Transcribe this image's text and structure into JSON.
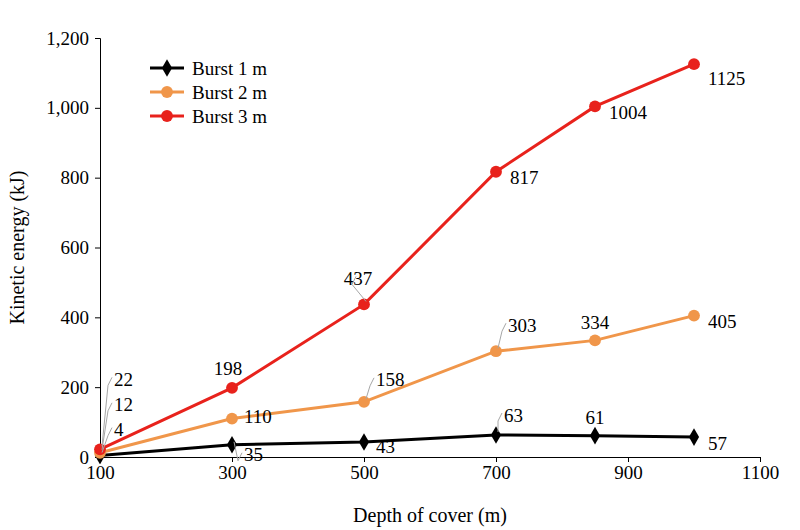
{
  "chart_data": {
    "type": "line",
    "x_label": "Depth of cover (m)",
    "y_label": "Kinetic energy (kJ)",
    "x": [
      100,
      300,
      500,
      700,
      850,
      1000
    ],
    "series": [
      {
        "name": "Burst 1 m",
        "color": "#000000",
        "marker": "diamond",
        "values": [
          4,
          35,
          43,
          63,
          61,
          57
        ]
      },
      {
        "name": "Burst 2 m",
        "color": "#f0964a",
        "marker": "circle",
        "values": [
          12,
          110,
          158,
          303,
          334,
          405
        ]
      },
      {
        "name": "Burst 3 m",
        "color": "#e8221c",
        "marker": "circle",
        "values": [
          22,
          198,
          437,
          817,
          1004,
          1125
        ]
      }
    ],
    "xlim": [
      100,
      1100
    ],
    "xticks": [
      100,
      300,
      500,
      700,
      900,
      1100
    ],
    "ylim": [
      0,
      1200
    ],
    "yticks": [
      0,
      200,
      400,
      600,
      800,
      {
        "value": 1000,
        "label": "1,000"
      },
      {
        "value": 1200,
        "label": "1,200"
      }
    ],
    "grid": false,
    "legend": "upper left",
    "data_labels": true
  }
}
